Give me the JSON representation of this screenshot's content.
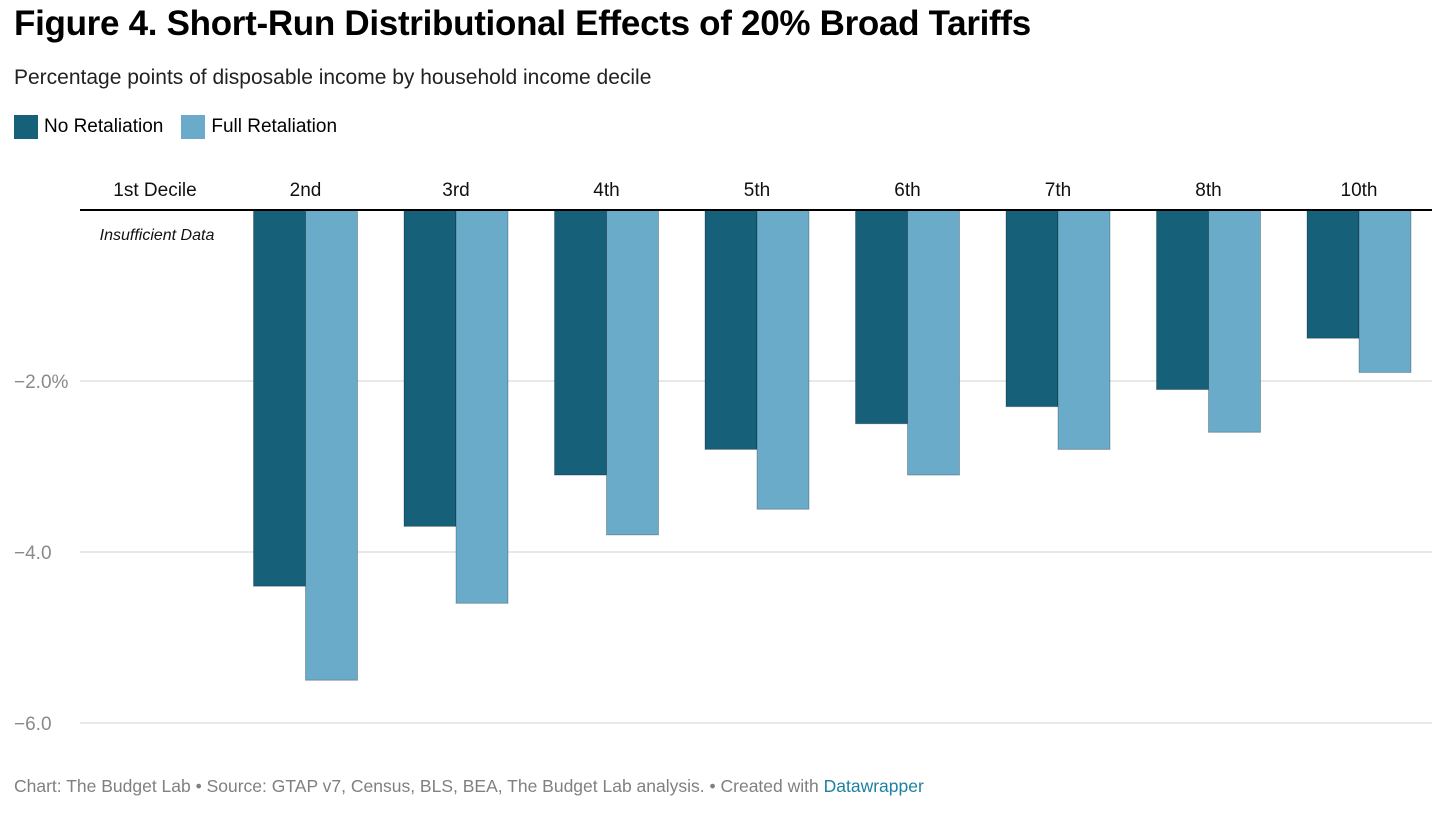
{
  "title": "Figure 4. Short-Run Distributional Effects of 20% Broad Tariffs",
  "subtitle": "Percentage points of disposable income by household income decile",
  "legend": [
    {
      "label": "No Retaliation",
      "color": "#17607a"
    },
    {
      "label": "Full Retaliation",
      "color": "#6aabca"
    }
  ],
  "chart_data": {
    "type": "bar",
    "categories": [
      "1st Decile",
      "2nd",
      "3rd",
      "4th",
      "5th",
      "6th",
      "7th",
      "8th",
      "10th"
    ],
    "series": [
      {
        "name": "No Retaliation",
        "color": "#17607a",
        "values": [
          null,
          -4.4,
          -3.7,
          -3.1,
          -2.8,
          -2.5,
          -2.3,
          -2.1,
          -1.5
        ]
      },
      {
        "name": "Full Retaliation",
        "color": "#6aabca",
        "values": [
          null,
          -5.5,
          -4.6,
          -3.8,
          -3.5,
          -3.1,
          -2.8,
          -2.6,
          -1.9
        ]
      }
    ],
    "ylim": [
      -6.0,
      0
    ],
    "yticks": [
      {
        "value": -2.0,
        "label": "−2.0%"
      },
      {
        "value": -4.0,
        "label": "−4.0"
      },
      {
        "value": -6.0,
        "label": "−6.0"
      }
    ],
    "annotation": "Insufficient Data",
    "xlabel": "",
    "ylabel": "",
    "grid": true,
    "legend_position": "top-left"
  },
  "footer": {
    "text": "Chart: The Budget Lab • Source: GTAP v7, Census, BLS, BEA, The Budget Lab analysis. • Created with ",
    "link": "Datawrapper"
  }
}
